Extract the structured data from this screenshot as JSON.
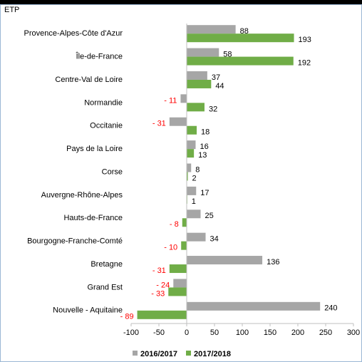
{
  "chart_data": {
    "type": "hbar",
    "unit_label": "ETP",
    "categories": [
      "Provence-Alpes-Côte d'Azur",
      "Île-de-France",
      "Centre-Val de Loire",
      "Normandie",
      "Occitanie",
      "Pays de la Loire",
      "Corse",
      "Auvergne-Rhône-Alpes",
      "Hauts-de-France",
      "Bourgogne-Franche-Comté",
      "Bretagne",
      "Grand Est",
      "Nouvelle - Aquitaine"
    ],
    "series": [
      {
        "name": "2016/2017",
        "color": "#a6a6a6",
        "values": [
          88,
          58,
          37,
          -11,
          -31,
          16,
          8,
          17,
          25,
          34,
          136,
          -24,
          240
        ],
        "value_labels": [
          "88",
          "58",
          "37",
          "- 11",
          "- 31",
          "16",
          "8",
          "17",
          "25",
          "34",
          "136",
          "- 24",
          "240"
        ]
      },
      {
        "name": "2017/2018",
        "color": "#70ad47",
        "values": [
          193,
          192,
          44,
          32,
          18,
          13,
          2,
          1,
          -8,
          -10,
          -31,
          -33,
          -89
        ],
        "value_labels": [
          "193",
          "192",
          "44",
          "32",
          "18",
          "13",
          "2",
          "1",
          "- 8",
          "- 10",
          "- 31",
          "- 33",
          "- 89"
        ]
      }
    ],
    "negative_label_color": "#ff0000",
    "xlim": [
      -100,
      300
    ],
    "xticks": [
      -100,
      -50,
      0,
      50,
      100,
      150,
      200,
      250,
      300
    ]
  }
}
